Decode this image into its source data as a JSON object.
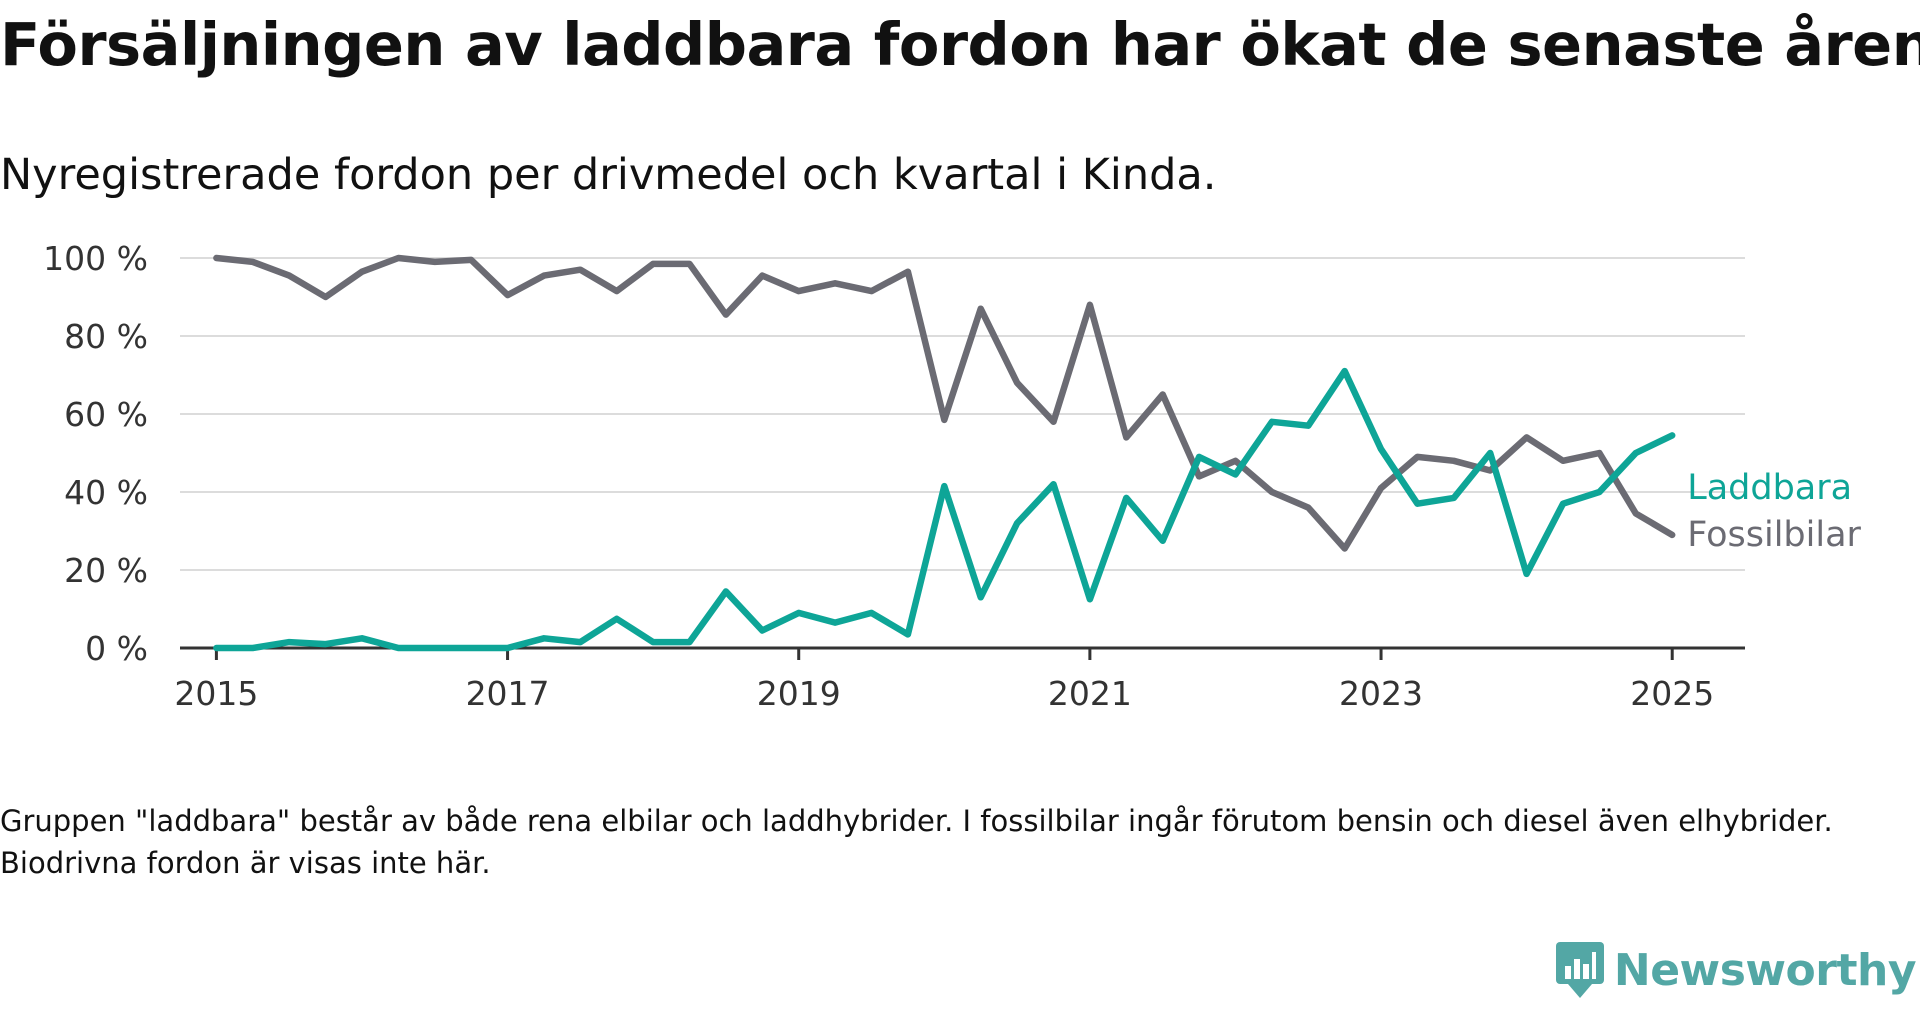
{
  "title": "Försäljningen av laddbara fordon har ökat de senaste åren",
  "subtitle": "Nyregistrerade fordon per drivmedel och kvartal i Kinda.",
  "note": "Gruppen \"laddbara\" består av både rena elbilar och laddhybrider. I fossilbilar ingår förutom bensin och diesel även elhybrider. Biodrivna fordon är visas inte här.",
  "brand": {
    "name": "Newsworthy",
    "color": "#53a7a5"
  },
  "chart_data": {
    "type": "line",
    "x_start": "2015 Q1",
    "x_step": "kvartal",
    "ylim": [
      0,
      100
    ],
    "xlim": [
      2014.75,
      2025.5
    ],
    "y_ticks": [
      0,
      20,
      40,
      60,
      80,
      100
    ],
    "y_tick_labels": [
      "0 %",
      "20 %",
      "40 %",
      "60 %",
      "80 %",
      "100 %"
    ],
    "x_ticks": [
      2015,
      2017,
      2019,
      2021,
      2023,
      2025
    ],
    "x_tick_labels": [
      "2015",
      "2017",
      "2019",
      "2021",
      "2023",
      "2025"
    ],
    "grid": "horizontal",
    "legend": "direct labels at line ends",
    "series": [
      {
        "name": "Laddbara",
        "color": "#0ea597",
        "values": [
          0,
          0,
          1.5,
          1,
          2.5,
          0,
          0,
          0,
          0,
          2.5,
          1.5,
          7.5,
          1.5,
          1.5,
          14.5,
          4.5,
          9,
          6.5,
          9,
          3.5,
          41.5,
          13,
          32,
          42,
          12.5,
          38.5,
          27.5,
          49,
          44.5,
          58,
          57,
          71,
          51,
          37,
          38.5,
          50,
          19,
          37,
          40,
          50,
          54.5
        ]
      },
      {
        "name": "Fossilbilar",
        "color": "#6b6b73",
        "values": [
          100,
          99,
          95.5,
          90,
          96.5,
          100,
          99,
          99.5,
          90.5,
          95.5,
          97,
          91.5,
          98.5,
          98.5,
          85.5,
          95.5,
          91.5,
          93.5,
          91.5,
          96.5,
          58.5,
          87,
          68,
          58,
          88,
          54,
          65,
          44,
          48,
          40,
          36,
          25.5,
          41,
          49,
          48,
          45.5,
          54,
          48,
          50,
          34.5,
          29
        ]
      }
    ]
  }
}
